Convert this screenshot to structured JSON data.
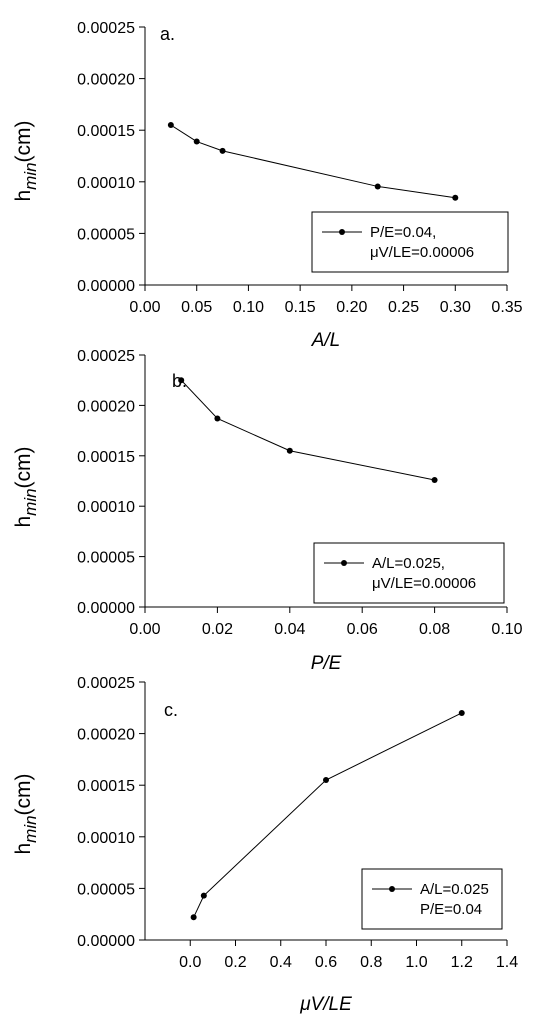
{
  "chart_data": [
    {
      "type": "line",
      "panel_label": "a.",
      "xlabel": "A/L",
      "ylabel": {
        "base": "h",
        "sub": "min",
        "unit": "(cm)"
      },
      "xlim": [
        0.0,
        0.35
      ],
      "ylim": [
        0.0,
        0.00025
      ],
      "xticks": [
        "0.00",
        "0.05",
        "0.10",
        "0.15",
        "0.20",
        "0.25",
        "0.30",
        "0.35"
      ],
      "xtick_values": [
        0,
        0.05,
        0.1,
        0.15,
        0.2,
        0.25,
        0.3,
        0.35
      ],
      "yticks": [
        "0.00000",
        "0.00005",
        "0.00010",
        "0.00015",
        "0.00020",
        "0.00025"
      ],
      "ytick_values": [
        0,
        5e-05,
        0.0001,
        0.00015,
        0.0002,
        0.00025
      ],
      "grid": false,
      "legend_position": "bottom-right",
      "series": [
        {
          "name": "P/E=0.04, μV/LE=0.00006",
          "legend_lines": [
            "P/E=0.04,",
            "μV/LE=0.00006"
          ],
          "x": [
            0.025,
            0.05,
            0.075,
            0.225,
            0.3
          ],
          "y": [
            0.000155,
            0.000139,
            0.00013,
            9.55e-05,
            8.45e-05
          ]
        }
      ]
    },
    {
      "type": "line",
      "panel_label": "b.",
      "xlabel": "P/E",
      "ylabel": {
        "base": "h",
        "sub": "min",
        "unit": "(cm)"
      },
      "xlim": [
        0.0,
        0.1
      ],
      "ylim": [
        0.0,
        0.00025
      ],
      "xticks": [
        "0.00",
        "0.02",
        "0.04",
        "0.06",
        "0.08",
        "0.10"
      ],
      "xtick_values": [
        0,
        0.02,
        0.04,
        0.06,
        0.08,
        0.1
      ],
      "yticks": [
        "0.00000",
        "0.00005",
        "0.00010",
        "0.00015",
        "0.00020",
        "0.00025"
      ],
      "ytick_values": [
        0,
        5e-05,
        0.0001,
        0.00015,
        0.0002,
        0.00025
      ],
      "grid": false,
      "legend_position": "bottom-right",
      "series": [
        {
          "name": "A/L=0.025, μV/LE=0.00006",
          "legend_lines": [
            "A/L=0.025,",
            "μV/LE=0.00006"
          ],
          "x": [
            0.01,
            0.02,
            0.04,
            0.08
          ],
          "y": [
            0.000225,
            0.000187,
            0.000155,
            0.000126
          ]
        }
      ]
    },
    {
      "type": "line",
      "panel_label": "c.",
      "xlabel": "μV/LE",
      "ylabel": {
        "base": "h",
        "sub": "min",
        "unit": "(cm)"
      },
      "xlim": [
        -0.2,
        1.4
      ],
      "ylim": [
        0.0,
        0.00025
      ],
      "xticks": [
        "0.0",
        "0.2",
        "0.4",
        "0.6",
        "0.8",
        "1.0",
        "1.2",
        "1.4"
      ],
      "xtick_values": [
        0,
        0.2,
        0.4,
        0.6,
        0.8,
        1.0,
        1.2,
        1.4
      ],
      "yticks": [
        "0.00000",
        "0.00005",
        "0.00010",
        "0.00015",
        "0.00020",
        "0.00025"
      ],
      "ytick_values": [
        0,
        5e-05,
        0.0001,
        0.00015,
        0.0002,
        0.00025
      ],
      "grid": false,
      "legend_position": "bottom-right",
      "series": [
        {
          "name": "A/L=0.025 P/E=0.04",
          "legend_lines": [
            "A/L=0.025",
            "P/E=0.04"
          ],
          "x": [
            0.015,
            0.06,
            0.6,
            1.2
          ],
          "y": [
            2.2e-05,
            4.3e-05,
            0.000155,
            0.00022
          ]
        }
      ]
    }
  ]
}
